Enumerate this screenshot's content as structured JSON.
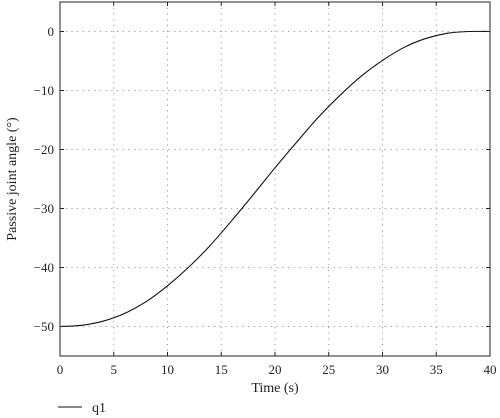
{
  "chart_data": {
    "type": "line",
    "title": "",
    "xlabel": "Time (s)",
    "ylabel": "Passive joint angle (°)",
    "xlim": [
      0,
      40
    ],
    "ylim": [
      -55,
      5
    ],
    "xticks": [
      0,
      5,
      10,
      15,
      20,
      25,
      30,
      35,
      40
    ],
    "yticks": [
      0,
      -10,
      -20,
      -30,
      -40,
      -50
    ],
    "xtick_labels": [
      "0",
      "5",
      "10",
      "15",
      "20",
      "25",
      "30",
      "35",
      "40"
    ],
    "ytick_labels": [
      "0",
      "−10",
      "−20",
      "−30",
      "−40",
      "−50"
    ],
    "grid": true,
    "legend_position": "bottom-left, below plot",
    "series": [
      {
        "name": "q1",
        "color": "#111111",
        "x": [
          0,
          2,
          4,
          6,
          8,
          10,
          12,
          14,
          16,
          18,
          20,
          22,
          24,
          26,
          28,
          30,
          32,
          34,
          36,
          38,
          40
        ],
        "values": [
          -50,
          -49.8,
          -49.1,
          -47.8,
          -45.8,
          -43.1,
          -39.9,
          -36.2,
          -32.0,
          -27.6,
          -23.1,
          -18.8,
          -14.6,
          -10.9,
          -7.6,
          -4.9,
          -2.7,
          -1.2,
          -0.3,
          0.0,
          0.0
        ]
      }
    ]
  }
}
